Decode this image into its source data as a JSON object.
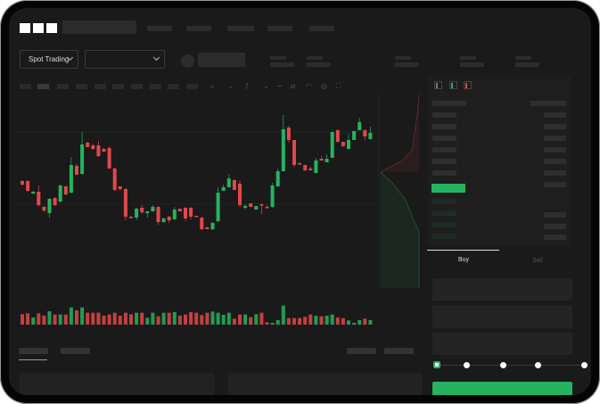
{
  "brand": {
    "logo_text": "OKX"
  },
  "toolbar": {
    "market_type": "Spot Trading"
  },
  "orderbook": {
    "icons": [
      "orderbook-both-icon",
      "orderbook-buy-icon",
      "orderbook-sell-icon"
    ]
  },
  "trade": {
    "tabs": [
      "Buy",
      "Sell"
    ],
    "active_tab": "Buy",
    "leverage_steps": 5,
    "selected_step": 0
  },
  "colors": {
    "up": "#25b35f",
    "down": "#e0484b",
    "background": "#1a1a1a",
    "accent": "#25b35f"
  },
  "chart_data": {
    "type": "candlestick",
    "candles": [
      [
        97,
        98,
        92,
        93
      ],
      [
        97,
        98,
        85,
        86
      ],
      [
        83,
        86,
        82,
        85
      ],
      [
        85,
        92,
        68,
        70
      ],
      [
        68,
        69,
        62,
        64
      ],
      [
        61,
        78,
        56,
        77
      ],
      [
        78,
        79,
        69,
        70
      ],
      [
        74,
        93,
        73,
        92
      ],
      [
        91,
        92,
        81,
        82
      ],
      [
        84,
        124,
        83,
        115
      ],
      [
        114,
        117,
        104,
        104
      ],
      [
        105,
        152,
        104,
        138
      ],
      [
        140,
        141,
        135,
        135
      ],
      [
        137,
        139,
        132,
        133
      ],
      [
        137,
        142,
        124,
        125
      ],
      [
        133,
        134,
        130,
        130
      ],
      [
        134,
        136,
        111,
        111
      ],
      [
        111,
        112,
        86,
        87
      ],
      [
        91,
        91,
        86,
        88
      ],
      [
        88,
        89,
        53,
        57
      ],
      [
        57,
        58,
        55,
        56
      ],
      [
        56,
        67,
        53,
        66
      ],
      [
        67,
        70,
        60,
        62
      ],
      [
        61,
        63,
        56,
        63
      ],
      [
        63,
        70,
        63,
        68
      ],
      [
        68,
        69,
        48,
        51
      ],
      [
        51,
        56,
        50,
        55
      ],
      [
        57,
        58,
        50,
        53
      ],
      [
        54,
        68,
        54,
        65
      ],
      [
        66,
        66,
        63,
        63
      ],
      [
        67,
        68,
        52,
        55
      ],
      [
        67,
        68,
        54,
        57
      ],
      [
        58,
        58,
        57,
        57
      ],
      [
        56,
        57,
        42,
        43
      ],
      [
        45,
        46,
        43,
        43
      ],
      [
        43,
        51,
        42,
        50
      ],
      [
        52,
        90,
        51,
        84
      ],
      [
        86,
        93,
        86,
        90
      ],
      [
        90,
        105,
        90,
        100
      ],
      [
        98,
        99,
        87,
        87
      ],
      [
        94,
        98,
        68,
        70
      ],
      [
        67,
        71,
        65,
        69
      ],
      [
        72,
        72,
        68,
        68
      ],
      [
        65,
        69,
        65,
        69
      ],
      [
        71,
        72,
        60,
        70
      ],
      [
        68,
        70,
        67,
        67
      ],
      [
        68,
        95,
        67,
        92
      ],
      [
        91,
        111,
        91,
        108
      ],
      [
        108,
        171,
        108,
        155
      ],
      [
        157,
        159,
        140,
        143
      ],
      [
        143,
        143,
        113,
        115
      ],
      [
        117,
        118,
        115,
        116
      ],
      [
        115,
        115,
        108,
        109
      ],
      [
        111,
        113,
        109,
        109
      ],
      [
        106,
        123,
        106,
        120
      ],
      [
        122,
        125,
        120,
        120
      ],
      [
        118,
        127,
        118,
        122
      ],
      [
        123,
        152,
        123,
        152
      ],
      [
        154,
        155,
        140,
        141
      ],
      [
        141,
        141,
        136,
        136
      ],
      [
        133,
        150,
        133,
        143
      ],
      [
        143,
        153,
        143,
        153
      ],
      [
        154,
        168,
        154,
        163
      ],
      [
        154,
        155,
        143,
        147
      ],
      [
        144,
        158,
        144,
        151
      ]
    ],
    "volume": [
      35,
      38,
      24,
      38,
      30,
      45,
      34,
      34,
      34,
      58,
      48,
      58,
      40,
      40,
      40,
      30,
      34,
      40,
      30,
      40,
      35,
      40,
      40,
      23,
      40,
      28,
      40,
      40,
      42,
      30,
      34,
      42,
      40,
      32,
      40,
      44,
      40,
      33,
      40,
      20,
      34,
      34,
      25,
      35,
      40,
      8,
      6,
      15,
      64,
      22,
      22,
      22,
      26,
      34,
      30,
      28,
      30,
      34,
      24,
      22,
      14,
      6,
      15,
      20,
      15
    ],
    "grid": true
  }
}
